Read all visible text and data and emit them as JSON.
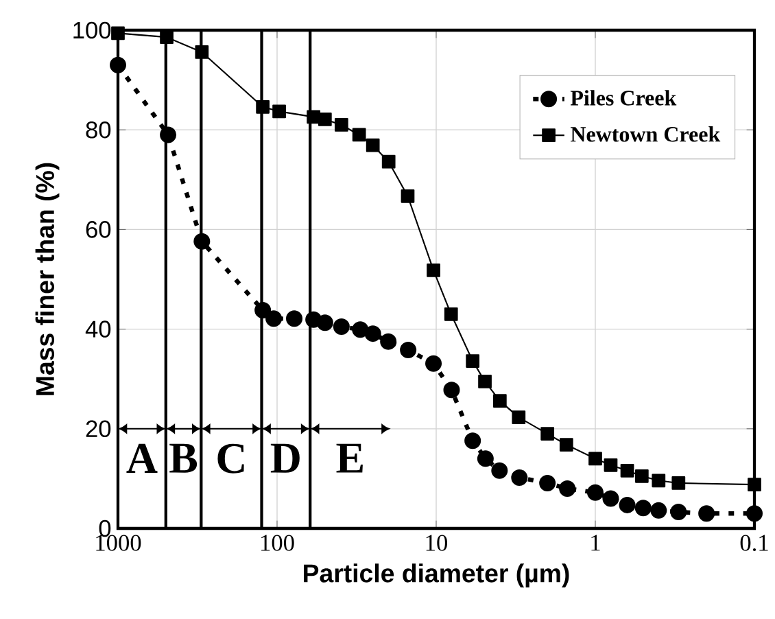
{
  "chart_data": {
    "type": "line",
    "xlabel": "Particle diameter (µm)",
    "ylabel": "Mass finer than (%)",
    "log": "x",
    "xlim": [
      1000,
      0.1
    ],
    "xticks": [
      1000,
      100,
      10,
      1,
      0.1
    ],
    "ylim": [
      0,
      100
    ],
    "yticks": [
      0,
      20,
      40,
      60,
      80,
      100
    ],
    "grid": true,
    "legend": "top right",
    "series": [
      {
        "name": "Piles Creek",
        "color": "#000000",
        "marker": "circle",
        "line_style": "dotted",
        "x": [
          1000,
          484,
          297,
          123,
          105,
          78,
          59,
          50,
          39.4,
          30,
          25,
          20,
          15,
          10.4,
          8,
          5.9,
          4.9,
          4,
          3,
          2,
          1.5,
          1,
          0.8,
          0.63,
          0.5,
          0.4,
          0.3,
          0.2,
          0.1
        ],
        "values": [
          93,
          79,
          57.6,
          43.8,
          42.1,
          42.1,
          41.9,
          41.3,
          40.5,
          39.9,
          39.1,
          37.5,
          35.8,
          33.1,
          27.8,
          17.6,
          14,
          11.6,
          10.2,
          9.1,
          8,
          7.2,
          6,
          4.7,
          4.1,
          3.6,
          3.3,
          3,
          3
        ]
      },
      {
        "name": "Newtown Creek",
        "color": "#000000",
        "marker": "square",
        "line_style": "solid",
        "x": [
          1000,
          494,
          297,
          123,
          97,
          59,
          50,
          39.4,
          30.5,
          25,
          19.9,
          15.1,
          10.4,
          8.06,
          5.9,
          4.94,
          3.98,
          3.03,
          2,
          1.52,
          1,
          0.8,
          0.63,
          0.51,
          0.4,
          0.3,
          0.1
        ],
        "values": [
          99.4,
          98.6,
          95.6,
          84.6,
          83.7,
          82.6,
          82.1,
          81,
          79,
          76.9,
          73.6,
          66.7,
          51.8,
          43,
          33.6,
          29.5,
          25.6,
          22.3,
          19,
          16.8,
          14,
          12.7,
          11.6,
          10.5,
          9.6,
          9.1,
          8.8
        ]
      }
    ],
    "ref_lines": [
      {
        "axis": "x",
        "value": 500
      },
      {
        "axis": "x",
        "value": 300
      },
      {
        "axis": "x",
        "value": 125
      },
      {
        "axis": "x",
        "value": 62
      }
    ],
    "annotations": [
      "A",
      "B",
      "C",
      "D",
      "E"
    ]
  }
}
